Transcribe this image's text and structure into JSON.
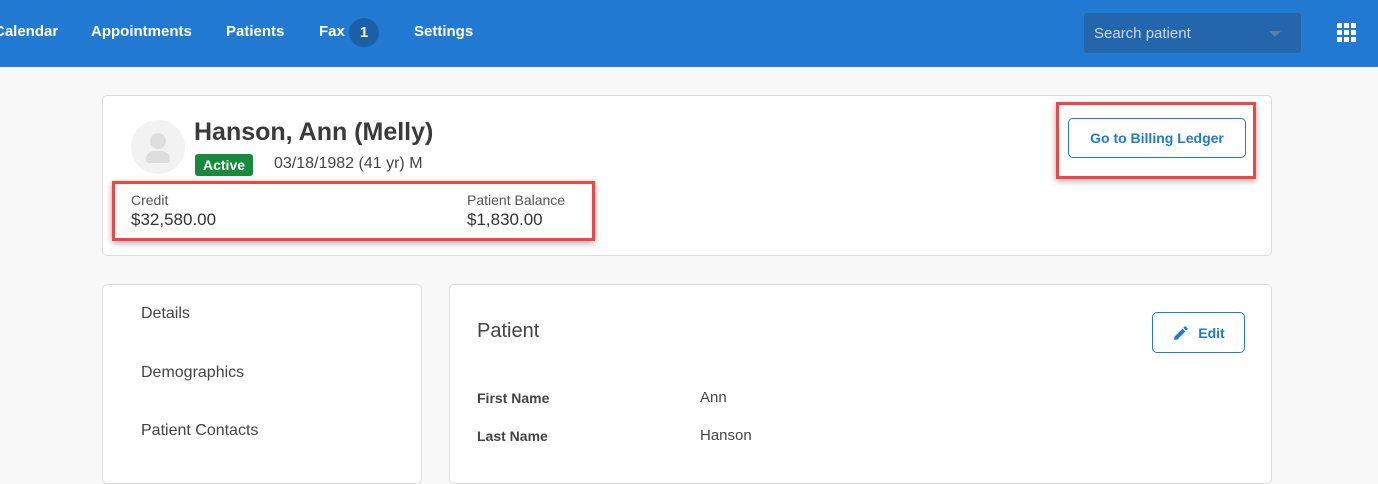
{
  "nav": {
    "items": [
      "Calendar",
      "Appointments",
      "Patients",
      "Fax",
      "Settings"
    ],
    "fax_count": "1",
    "search_placeholder": "Search patient"
  },
  "patient": {
    "name": "Hanson, Ann (Melly)",
    "status": "Active",
    "dob": "03/18/1982 (41 yr) M",
    "credit_label": "Credit",
    "credit": "$32,580.00",
    "balance_label": "Patient Balance",
    "balance": "$1,830.00",
    "billing_button": "Go to Billing Ledger"
  },
  "sidebar": {
    "items": [
      "Details",
      "Demographics",
      "Patient Contacts"
    ]
  },
  "section": {
    "title": "Patient",
    "edit": "Edit",
    "fields": [
      {
        "label": "First Name",
        "value": "Ann"
      },
      {
        "label": "Last Name",
        "value": "Hanson"
      }
    ]
  },
  "colors": {
    "nav": "#2279d2",
    "active": "#178a3b",
    "highlight": "#f04545"
  }
}
